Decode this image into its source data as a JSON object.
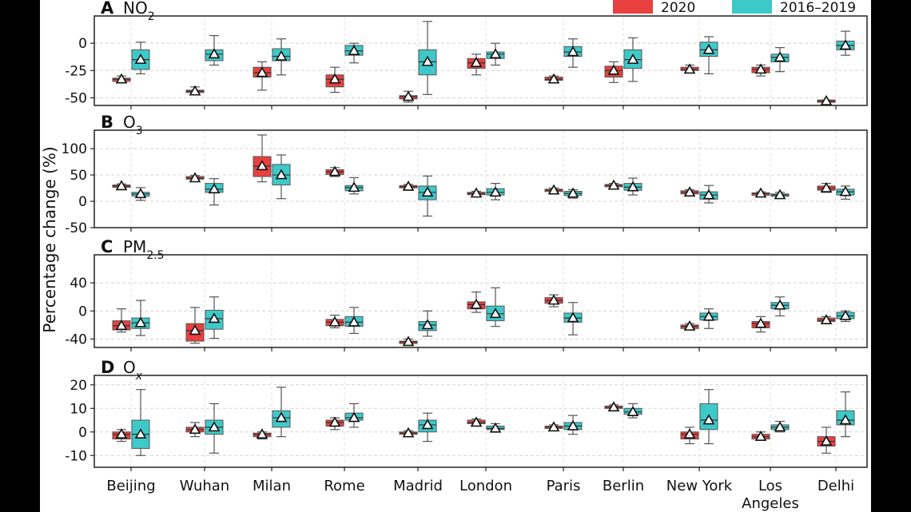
{
  "chart_data": {
    "type": "box",
    "ylabel": "Percentage change (%)",
    "categories": [
      "Beijing",
      "Wuhan",
      "Milan",
      "Rome",
      "Madrid",
      "London",
      "Paris",
      "Berlin",
      "New York",
      "Los\nAngeles",
      "Delhi"
    ],
    "legend": {
      "position": "top-right",
      "items": [
        {
          "name": "2020",
          "color": "#e8403f"
        },
        {
          "name": "2016–2019",
          "color": "#3ec9c9"
        }
      ]
    },
    "grid": true,
    "panels": [
      {
        "label": "A",
        "title": "NO",
        "sub": "2",
        "ylim": [
          -57,
          25
        ],
        "ticks": [
          0,
          -25,
          -50
        ],
        "series": [
          {
            "name": "2020",
            "boxes": [
              [
                -36,
                -35,
                -33,
                -32,
                -30
              ],
              [
                -46,
                -45,
                -44,
                -43,
                -40
              ],
              [
                -43,
                -31,
                -27,
                -22,
                -17
              ],
              [
                -45,
                -40,
                -33,
                -29,
                -22
              ],
              [
                -54,
                -51,
                -49,
                -48,
                -44
              ],
              [
                -29,
                -23,
                -18,
                -14,
                -10
              ],
              [
                -36,
                -34,
                -33,
                -31,
                -30
              ],
              [
                -36,
                -31,
                -25,
                -21,
                -17
              ],
              [
                -27,
                -25,
                -24,
                -22,
                -20
              ],
              [
                -30,
                -27,
                -24,
                -22,
                -20
              ],
              [
                -53,
                -53,
                -53,
                -52,
                -52
              ]
            ]
          },
          {
            "name": "2016–2019",
            "boxes": [
              [
                -28,
                -24,
                -15,
                -6,
                1
              ],
              [
                -20,
                -16,
                -10,
                -6,
                7
              ],
              [
                -29,
                -16,
                -12,
                -5,
                4
              ],
              [
                -18,
                -11,
                -7,
                -2,
                0
              ],
              [
                -47,
                -29,
                -17,
                -6,
                20
              ],
              [
                -20,
                -14,
                -10,
                -8,
                0
              ],
              [
                -22,
                -12,
                -8,
                -3,
                4
              ],
              [
                -35,
                -23,
                -15,
                -6,
                5
              ],
              [
                -28,
                -12,
                -6,
                1,
                6
              ],
              [
                -26,
                -17,
                -13,
                -10,
                -4
              ],
              [
                -11,
                -6,
                -2,
                2,
                11
              ]
            ]
          }
        ]
      },
      {
        "label": "B",
        "title": "O",
        "sub": "3",
        "ylim": [
          -50,
          135
        ],
        "ticks": [
          100,
          50,
          0,
          -50
        ],
        "series": [
          {
            "name": "2020",
            "boxes": [
              [
                25,
                27,
                29,
                31,
                33
              ],
              [
                39,
                42,
                44,
                47,
                49
              ],
              [
                37,
                47,
                67,
                85,
                126
              ],
              [
                47,
                51,
                56,
                60,
                64
              ],
              [
                24,
                26,
                28,
                30,
                32
              ],
              [
                12,
                14,
                15,
                17,
                19
              ],
              [
                17,
                19,
                21,
                23,
                25
              ],
              [
                25,
                28,
                30,
                32,
                34
              ],
              [
                12,
                14,
                17,
                20,
                22
              ],
              [
                11,
                13,
                15,
                16,
                18
              ],
              [
                17,
                21,
                25,
                29,
                34
              ]
            ]
          },
          {
            "name": "2016–2019",
            "boxes": [
              [
                2,
                10,
                14,
                17,
                26
              ],
              [
                -7,
                17,
                23,
                34,
                43
              ],
              [
                5,
                31,
                50,
                70,
                88
              ],
              [
                14,
                20,
                26,
                30,
                45
              ],
              [
                -28,
                3,
                17,
                29,
                48
              ],
              [
                3,
                12,
                17,
                24,
                34
              ],
              [
                6,
                11,
                15,
                19,
                22
              ],
              [
                12,
                21,
                27,
                34,
                44
              ],
              [
                -3,
                4,
                12,
                18,
                30
              ],
              [
                7,
                10,
                12,
                14,
                17
              ],
              [
                4,
                12,
                18,
                23,
                29
              ]
            ]
          }
        ]
      },
      {
        "label": "C",
        "title": "PM",
        "sub": "2.5",
        "ylim": [
          -52,
          80
        ],
        "ticks": [
          40,
          0,
          -40
        ],
        "series": [
          {
            "name": "2020",
            "boxes": [
              [
                -30,
                -27,
                -21,
                -14,
                3
              ],
              [
                -46,
                -43,
                -28,
                -18,
                5
              ],
              null,
              [
                -24,
                -21,
                -16,
                -12,
                -6
              ],
              [
                -47,
                -46,
                -44,
                -43,
                -40
              ],
              [
                -2,
                3,
                9,
                13,
                27
              ],
              [
                6,
                11,
                15,
                19,
                23
              ],
              null,
              [
                -26,
                -25,
                -22,
                -20,
                -18
              ],
              [
                -30,
                -24,
                -18,
                -15,
                -8
              ],
              [
                -16,
                -15,
                -13,
                -10,
                -8
              ]
            ]
          },
          {
            "name": "2016–2019",
            "boxes": [
              [
                -35,
                -25,
                -17,
                -10,
                15
              ],
              [
                -39,
                -26,
                -11,
                1,
                20
              ],
              null,
              [
                -32,
                -22,
                -16,
                -8,
                5
              ],
              [
                -36,
                -28,
                -20,
                -15,
                0
              ],
              [
                -22,
                -14,
                -4,
                7,
                33
              ],
              [
                -34,
                -16,
                -10,
                -3,
                12
              ],
              null,
              [
                -25,
                -13,
                -8,
                -3,
                3
              ],
              [
                -7,
                3,
                8,
                12,
                20
              ],
              [
                -15,
                -11,
                -7,
                -2,
                0
              ]
            ]
          }
        ]
      },
      {
        "label": "D",
        "title": "O",
        "sub": "x",
        "ylim": [
          -15,
          24
        ],
        "ticks": [
          20,
          10,
          0,
          -10
        ],
        "series": [
          {
            "name": "2020",
            "boxes": [
              [
                -4,
                -3,
                -1,
                0,
                1
              ],
              [
                -2,
                0,
                1,
                2,
                4
              ],
              [
                -3,
                -2,
                -1,
                -0.5,
                0
              ],
              [
                1,
                2.5,
                4,
                5,
                6
              ],
              [
                -1.5,
                -1,
                -0.5,
                0,
                0.5
              ],
              [
                2.5,
                3.5,
                4,
                5,
                5.5
              ],
              [
                1,
                1.5,
                2,
                2.5,
                3
              ],
              [
                9,
                10,
                10.5,
                11,
                11.5
              ],
              [
                -5,
                -3,
                -1,
                0,
                2
              ],
              [
                -3.5,
                -3,
                -2,
                -1,
                0
              ],
              [
                -9,
                -6,
                -4,
                -2,
                2
              ]
            ]
          },
          {
            "name": "2016–2019",
            "boxes": [
              [
                -10,
                -7,
                -1,
                5,
                18
              ],
              [
                -9,
                -1,
                2,
                5,
                12
              ],
              [
                -2,
                2,
                6,
                9,
                19
              ],
              [
                2,
                5,
                6,
                8,
                12
              ],
              [
                -4,
                0,
                3,
                5,
                8
              ],
              [
                0,
                1,
                1.5,
                2.5,
                3.5
              ],
              [
                -1,
                1,
                2.5,
                4,
                7
              ],
              [
                6,
                7.5,
                8.5,
                10,
                12
              ],
              [
                -5,
                1,
                5,
                12,
                18
              ],
              [
                0,
                1,
                2,
                3,
                4.5
              ],
              [
                -2,
                3,
                5,
                9,
                17
              ]
            ]
          }
        ]
      }
    ]
  }
}
